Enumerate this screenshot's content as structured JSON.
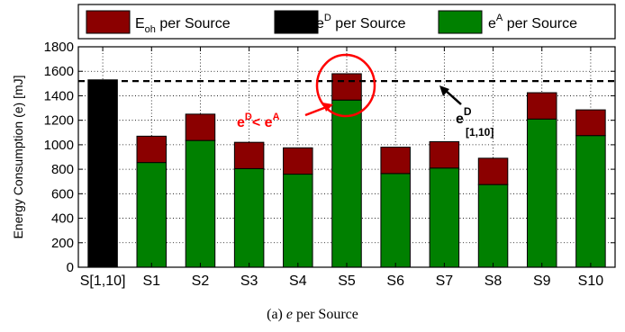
{
  "colors": {
    "eoh": "#8b0000",
    "eD": "#000000",
    "eA": "#008000",
    "annotation": "#ff0000"
  },
  "caption": {
    "prefix": "(a) ",
    "symbol": "e",
    "suffix": " per Source"
  },
  "chart_data": {
    "type": "bar",
    "stacked": true,
    "categories": [
      "S[1,10]",
      "S1",
      "S2",
      "S3",
      "S4",
      "S5",
      "S6",
      "S7",
      "S8",
      "S9",
      "S10"
    ],
    "series": [
      {
        "name": "eD per Source",
        "color": "#000000",
        "values": [
          1530,
          null,
          null,
          null,
          null,
          null,
          null,
          null,
          null,
          null,
          null
        ]
      },
      {
        "name": "eA per Source",
        "color": "#008000",
        "values": [
          null,
          855,
          1035,
          805,
          760,
          1365,
          765,
          810,
          675,
          1210,
          1075
        ]
      },
      {
        "name": "Eoh per Source",
        "color": "#8b0000",
        "values": [
          null,
          215,
          215,
          215,
          215,
          215,
          215,
          215,
          215,
          215,
          210
        ]
      }
    ],
    "legend": [
      {
        "base": "E",
        "sub": "oh",
        "sup": "",
        "text": " per Source",
        "color": "#8b0000"
      },
      {
        "base": "e",
        "sub": "",
        "sup": "D",
        "text": " per Source",
        "color": "#000000"
      },
      {
        "base": "e",
        "sub": "",
        "sup": "A",
        "text": " per Source",
        "color": "#008000"
      }
    ],
    "legend_position": "top",
    "ylabel": "Energy Consumption (e) [mJ]",
    "xlabel": "",
    "ylim": [
      0,
      1800
    ],
    "yticks": [
      0,
      200,
      400,
      600,
      800,
      1000,
      1200,
      1400,
      1600,
      1800
    ],
    "grid": "dotted",
    "reference_line": {
      "value": 1520,
      "style": "dashed"
    },
    "annotations": {
      "comparison": {
        "left": "e",
        "left_sup": "D",
        "op": "< ",
        "right": "e",
        "right_sup": "A"
      },
      "reference": {
        "base": "e",
        "sup": "D",
        "sub": "[1,10]"
      },
      "highlight_category": "S5"
    }
  }
}
